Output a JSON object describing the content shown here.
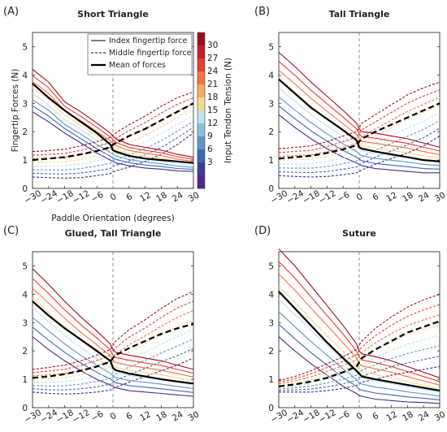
{
  "chart_data": [
    {
      "panel": "(A)",
      "title": "Short Triangle",
      "type": "line",
      "x": [
        -30,
        -24,
        -18,
        -12,
        -6,
        -1,
        0,
        1,
        6,
        12,
        18,
        24,
        30
      ],
      "xlabel": "Paddle Orientation (degrees)",
      "ylabel": "Fingertip Forces (N)",
      "xlim": [
        -30,
        30
      ],
      "ylim": [
        0,
        5.5
      ],
      "index_lo": [
        2.7,
        2.35,
        1.95,
        1.6,
        1.25,
        1.0,
        0.95,
        0.9,
        0.8,
        0.72,
        0.68,
        0.62,
        0.6
      ],
      "index_hi": [
        4.2,
        3.75,
        3.05,
        2.7,
        2.3,
        1.95,
        1.85,
        1.75,
        1.55,
        1.45,
        1.35,
        1.2,
        1.1
      ],
      "middle_lo": [
        0.4,
        0.38,
        0.36,
        0.38,
        0.45,
        0.52,
        0.58,
        0.62,
        0.75,
        0.95,
        1.2,
        1.55,
        1.95
      ],
      "middle_hi": [
        1.3,
        1.33,
        1.38,
        1.5,
        1.65,
        1.8,
        1.88,
        1.95,
        2.25,
        2.55,
        2.9,
        3.2,
        3.4
      ],
      "mean_index": [
        3.7,
        3.2,
        2.75,
        2.35,
        1.95,
        1.55,
        1.35,
        1.3,
        1.15,
        1.05,
        1.0,
        0.95,
        0.9
      ],
      "mean_middle": [
        1.0,
        1.05,
        1.1,
        1.2,
        1.32,
        1.45,
        1.55,
        1.6,
        1.85,
        2.1,
        2.4,
        2.7,
        3.0
      ]
    },
    {
      "panel": "(B)",
      "title": "Tall Triangle",
      "type": "line",
      "x": [
        -30,
        -24,
        -18,
        -12,
        -6,
        -1,
        0,
        1,
        6,
        12,
        18,
        24,
        30
      ],
      "xlim": [
        -30,
        30
      ],
      "ylim": [
        0,
        5.5
      ],
      "index_lo": [
        2.6,
        2.15,
        1.75,
        1.4,
        1.1,
        0.9,
        0.85,
        0.8,
        0.7,
        0.65,
        0.6,
        0.55,
        0.55
      ],
      "index_hi": [
        4.8,
        4.3,
        3.75,
        3.25,
        2.75,
        2.3,
        2.1,
        2.0,
        1.95,
        1.85,
        1.75,
        1.6,
        1.45
      ],
      "middle_lo": [
        0.45,
        0.42,
        0.4,
        0.42,
        0.48,
        0.55,
        0.6,
        0.65,
        0.85,
        1.05,
        1.25,
        1.5,
        1.85
      ],
      "middle_hi": [
        1.4,
        1.45,
        1.5,
        1.65,
        1.85,
        2.0,
        2.15,
        2.3,
        2.6,
        2.95,
        3.3,
        3.55,
        3.75
      ],
      "mean_index": [
        3.85,
        3.35,
        2.85,
        2.45,
        2.05,
        1.7,
        1.45,
        1.4,
        1.3,
        1.2,
        1.1,
        1.0,
        0.95
      ],
      "mean_middle": [
        1.05,
        1.1,
        1.15,
        1.25,
        1.38,
        1.52,
        1.65,
        1.75,
        2.0,
        2.25,
        2.5,
        2.75,
        3.0
      ]
    },
    {
      "panel": "(C)",
      "title": "Glued, Tall Triangle",
      "type": "line",
      "x": [
        -30,
        -24,
        -18,
        -12,
        -6,
        -1,
        0,
        1,
        6,
        12,
        18,
        24,
        30
      ],
      "xlim": [
        -30,
        30
      ],
      "ylim": [
        0,
        5.5
      ],
      "index_lo": [
        2.5,
        2.05,
        1.65,
        1.3,
        1.0,
        0.8,
        0.75,
        0.7,
        0.6,
        0.55,
        0.5,
        0.45,
        0.4
      ],
      "index_hi": [
        4.9,
        4.35,
        3.75,
        3.2,
        2.7,
        2.25,
        2.05,
        1.95,
        1.85,
        1.75,
        1.65,
        1.5,
        1.35
      ],
      "middle_lo": [
        0.55,
        0.5,
        0.48,
        0.5,
        0.55,
        0.62,
        0.68,
        0.72,
        0.9,
        1.1,
        1.3,
        1.5,
        1.75
      ],
      "middle_hi": [
        1.35,
        1.42,
        1.5,
        1.65,
        1.85,
        2.05,
        2.2,
        2.35,
        2.75,
        3.1,
        3.5,
        3.85,
        4.1
      ],
      "mean_index": [
        3.75,
        3.25,
        2.8,
        2.4,
        2.0,
        1.65,
        1.4,
        1.32,
        1.2,
        1.1,
        1.0,
        0.92,
        0.85
      ],
      "mean_middle": [
        1.05,
        1.1,
        1.18,
        1.3,
        1.45,
        1.62,
        1.75,
        1.85,
        2.1,
        2.35,
        2.6,
        2.8,
        2.95
      ]
    },
    {
      "panel": "(D)",
      "title": "Suture",
      "type": "line",
      "x": [
        -30,
        -24,
        -18,
        -12,
        -6,
        -1,
        0,
        1,
        6,
        12,
        18,
        24,
        30
      ],
      "xlim": [
        -30,
        30
      ],
      "ylim": [
        0,
        5.5
      ],
      "index_lo": [
        2.5,
        2.0,
        1.55,
        1.15,
        0.75,
        0.5,
        0.42,
        0.4,
        0.3,
        0.25,
        0.2,
        0.18,
        0.15
      ],
      "index_hi": [
        5.6,
        5.0,
        4.3,
        3.6,
        2.9,
        2.25,
        2.0,
        1.9,
        1.8,
        1.65,
        1.45,
        1.25,
        1.05
      ],
      "middle_lo": [
        0.55,
        0.55,
        0.55,
        0.6,
        0.68,
        0.78,
        0.85,
        0.9,
        1.0,
        1.15,
        1.25,
        1.35,
        1.45
      ],
      "middle_hi": [
        0.95,
        1.1,
        1.3,
        1.55,
        1.8,
        2.05,
        2.2,
        2.35,
        2.8,
        3.2,
        3.55,
        3.8,
        4.0
      ],
      "mean_index": [
        4.1,
        3.5,
        2.9,
        2.3,
        1.75,
        1.3,
        1.2,
        1.1,
        1.0,
        0.9,
        0.8,
        0.7,
        0.6
      ],
      "mean_middle": [
        0.75,
        0.82,
        0.92,
        1.05,
        1.25,
        1.45,
        1.6,
        1.75,
        2.05,
        2.35,
        2.65,
        2.85,
        3.05
      ]
    }
  ],
  "xticks": [
    "−30",
    "−24",
    "−18",
    "−12",
    "−6",
    "0",
    "6",
    "12",
    "18",
    "24",
    "30"
  ],
  "xtick_values": [
    -30,
    -24,
    -18,
    -12,
    -6,
    0,
    6,
    12,
    18,
    24,
    30
  ],
  "yticks": [
    "0",
    "1",
    "2",
    "3",
    "4",
    "5"
  ],
  "ytick_values": [
    0,
    1,
    2,
    3,
    4,
    5
  ],
  "legend": {
    "index": "Index fingertip force",
    "middle": "Middle fingertip force",
    "mean": "Mean of forces"
  },
  "colorbar": {
    "label": "Input Tendon Tension (N)",
    "ticks": [
      "30",
      "27",
      "24",
      "21",
      "18",
      "15",
      "12",
      "9",
      "6",
      "3"
    ],
    "colors": [
      "#9e0d1f",
      "#c81c2a",
      "#e43f2f",
      "#f2743f",
      "#f8a961",
      "#fbd88b",
      "#bfe2ee",
      "#86c0dd",
      "#5a97c9",
      "#3b68b1",
      "#3b3f9c",
      "#4a2a8a"
    ]
  },
  "shared_xlabel": "Paddle Orientation (degrees)"
}
